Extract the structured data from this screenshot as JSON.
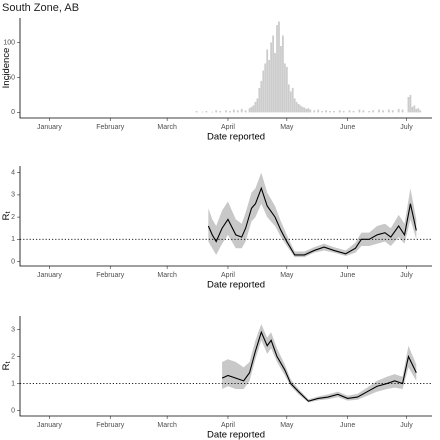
{
  "chart_data": [
    {
      "type": "bar",
      "title": "South Zone, AB",
      "y_label": "Incidence",
      "x_label": "Date reported",
      "color": "#cccccc",
      "xlim": [
        -15,
        195
      ],
      "xticks": [
        {
          "value": 0,
          "label": "January"
        },
        {
          "value": 31,
          "label": "February"
        },
        {
          "value": 60,
          "label": "March"
        },
        {
          "value": 91,
          "label": "April"
        },
        {
          "value": 121,
          "label": "May"
        },
        {
          "value": 152,
          "label": "June"
        },
        {
          "value": 182,
          "label": "July"
        }
      ],
      "ylim": [
        -8,
        135
      ],
      "yticks": [
        0,
        50,
        100
      ],
      "x": [
        75,
        78,
        80,
        83,
        85,
        87,
        90,
        92,
        94,
        96,
        98,
        100,
        102,
        103,
        104,
        105,
        106,
        107,
        108,
        109,
        110,
        111,
        112,
        113,
        114,
        115,
        116,
        117,
        118,
        119,
        120,
        121,
        122,
        123,
        124,
        125,
        126,
        127,
        128,
        129,
        130,
        131,
        132,
        133,
        135,
        137,
        139,
        141,
        143,
        145,
        148,
        150,
        153,
        155,
        158,
        160,
        163,
        165,
        168,
        170,
        173,
        175,
        178,
        180,
        183,
        184,
        185,
        186,
        187,
        188,
        189
      ],
      "values": [
        2,
        1,
        2,
        1,
        3,
        2,
        3,
        2,
        4,
        3,
        5,
        3,
        6,
        8,
        10,
        15,
        20,
        35,
        45,
        60,
        70,
        90,
        75,
        100,
        110,
        85,
        125,
        130,
        95,
        110,
        70,
        65,
        40,
        30,
        35,
        20,
        15,
        12,
        10,
        8,
        7,
        5,
        6,
        4,
        3,
        4,
        2,
        3,
        2,
        2,
        3,
        2,
        3,
        2,
        4,
        3,
        2,
        3,
        4,
        3,
        4,
        3,
        5,
        4,
        22,
        25,
        8,
        10,
        5,
        6,
        3
      ]
    },
    {
      "type": "line",
      "y_label": "R",
      "y_label_subscript": "t",
      "x_label": "Date reported",
      "color": "#000000",
      "band_color": "#c8c8c8",
      "hline": 1,
      "xlim": [
        -15,
        195
      ],
      "xticks": [
        {
          "value": 0,
          "label": "January"
        },
        {
          "value": 31,
          "label": "February"
        },
        {
          "value": 60,
          "label": "March"
        },
        {
          "value": 91,
          "label": "April"
        },
        {
          "value": 121,
          "label": "May"
        },
        {
          "value": 152,
          "label": "June"
        },
        {
          "value": 182,
          "label": "July"
        }
      ],
      "ylim": [
        -0.2,
        4.3
      ],
      "yticks": [
        0,
        1,
        2,
        3,
        4
      ],
      "x": [
        81,
        83,
        85,
        88,
        91,
        95,
        98,
        100,
        103,
        105,
        108,
        111,
        115,
        118,
        121,
        125,
        130,
        135,
        140,
        145,
        151,
        156,
        159,
        163,
        167,
        171,
        174,
        178,
        181,
        184,
        187
      ],
      "values": [
        1.6,
        1.2,
        0.9,
        1.5,
        1.9,
        1.2,
        1.1,
        1.5,
        2.4,
        2.6,
        3.3,
        2.5,
        2.0,
        1.4,
        0.9,
        0.3,
        0.3,
        0.5,
        0.65,
        0.5,
        0.35,
        0.6,
        1.0,
        1.0,
        1.2,
        1.3,
        1.1,
        1.6,
        1.2,
        2.6,
        1.4
      ],
      "lower": [
        0.9,
        0.6,
        0.3,
        0.8,
        1.2,
        0.6,
        0.6,
        0.9,
        1.8,
        2.0,
        2.6,
        2.0,
        1.6,
        1.1,
        0.7,
        0.2,
        0.2,
        0.4,
        0.5,
        0.4,
        0.25,
        0.4,
        0.7,
        0.7,
        0.8,
        0.9,
        0.7,
        1.1,
        0.8,
        1.9,
        1.0
      ],
      "upper": [
        2.4,
        1.9,
        1.6,
        2.3,
        2.7,
        1.9,
        1.7,
        2.2,
        3.1,
        3.3,
        4.0,
        3.1,
        2.5,
        1.8,
        1.2,
        0.45,
        0.45,
        0.65,
        0.8,
        0.65,
        0.5,
        0.85,
        1.3,
        1.3,
        1.6,
        1.7,
        1.5,
        2.1,
        1.7,
        3.3,
        1.9
      ]
    },
    {
      "type": "line",
      "y_label": "R",
      "y_label_subscript": "t",
      "x_label": "Date reported",
      "color": "#000000",
      "band_color": "#c8c8c8",
      "hline": 1,
      "xlim": [
        -15,
        195
      ],
      "xticks": [
        {
          "value": 0,
          "label": "January"
        },
        {
          "value": 31,
          "label": "February"
        },
        {
          "value": 60,
          "label": "March"
        },
        {
          "value": 91,
          "label": "April"
        },
        {
          "value": 121,
          "label": "May"
        },
        {
          "value": 152,
          "label": "June"
        },
        {
          "value": 182,
          "label": "July"
        }
      ],
      "ylim": [
        -0.2,
        3.5
      ],
      "yticks": [
        0,
        1,
        2,
        3
      ],
      "x": [
        88,
        91,
        95,
        99,
        102,
        105,
        108,
        111,
        113,
        116,
        120,
        123,
        127,
        132,
        137,
        142,
        147,
        152,
        157,
        162,
        167,
        172,
        176,
        180,
        183,
        185,
        187
      ],
      "values": [
        1.2,
        1.3,
        1.2,
        1.1,
        1.4,
        2.2,
        2.9,
        2.4,
        2.6,
        2.0,
        1.5,
        1.0,
        0.7,
        0.35,
        0.45,
        0.5,
        0.6,
        0.45,
        0.5,
        0.7,
        0.9,
        1.0,
        1.1,
        1.0,
        2.0,
        1.7,
        1.4
      ],
      "lower": [
        0.8,
        0.9,
        0.8,
        0.8,
        1.1,
        1.9,
        2.6,
        2.1,
        2.3,
        1.8,
        1.3,
        0.9,
        0.6,
        0.3,
        0.38,
        0.42,
        0.5,
        0.37,
        0.4,
        0.55,
        0.7,
        0.8,
        0.85,
        0.8,
        1.6,
        1.35,
        1.1
      ],
      "upper": [
        1.8,
        1.9,
        1.8,
        1.6,
        1.8,
        2.6,
        3.2,
        2.7,
        2.9,
        2.3,
        1.7,
        1.15,
        0.8,
        0.42,
        0.52,
        0.6,
        0.7,
        0.55,
        0.62,
        0.85,
        1.1,
        1.25,
        1.35,
        1.25,
        2.4,
        2.05,
        1.7
      ]
    }
  ]
}
